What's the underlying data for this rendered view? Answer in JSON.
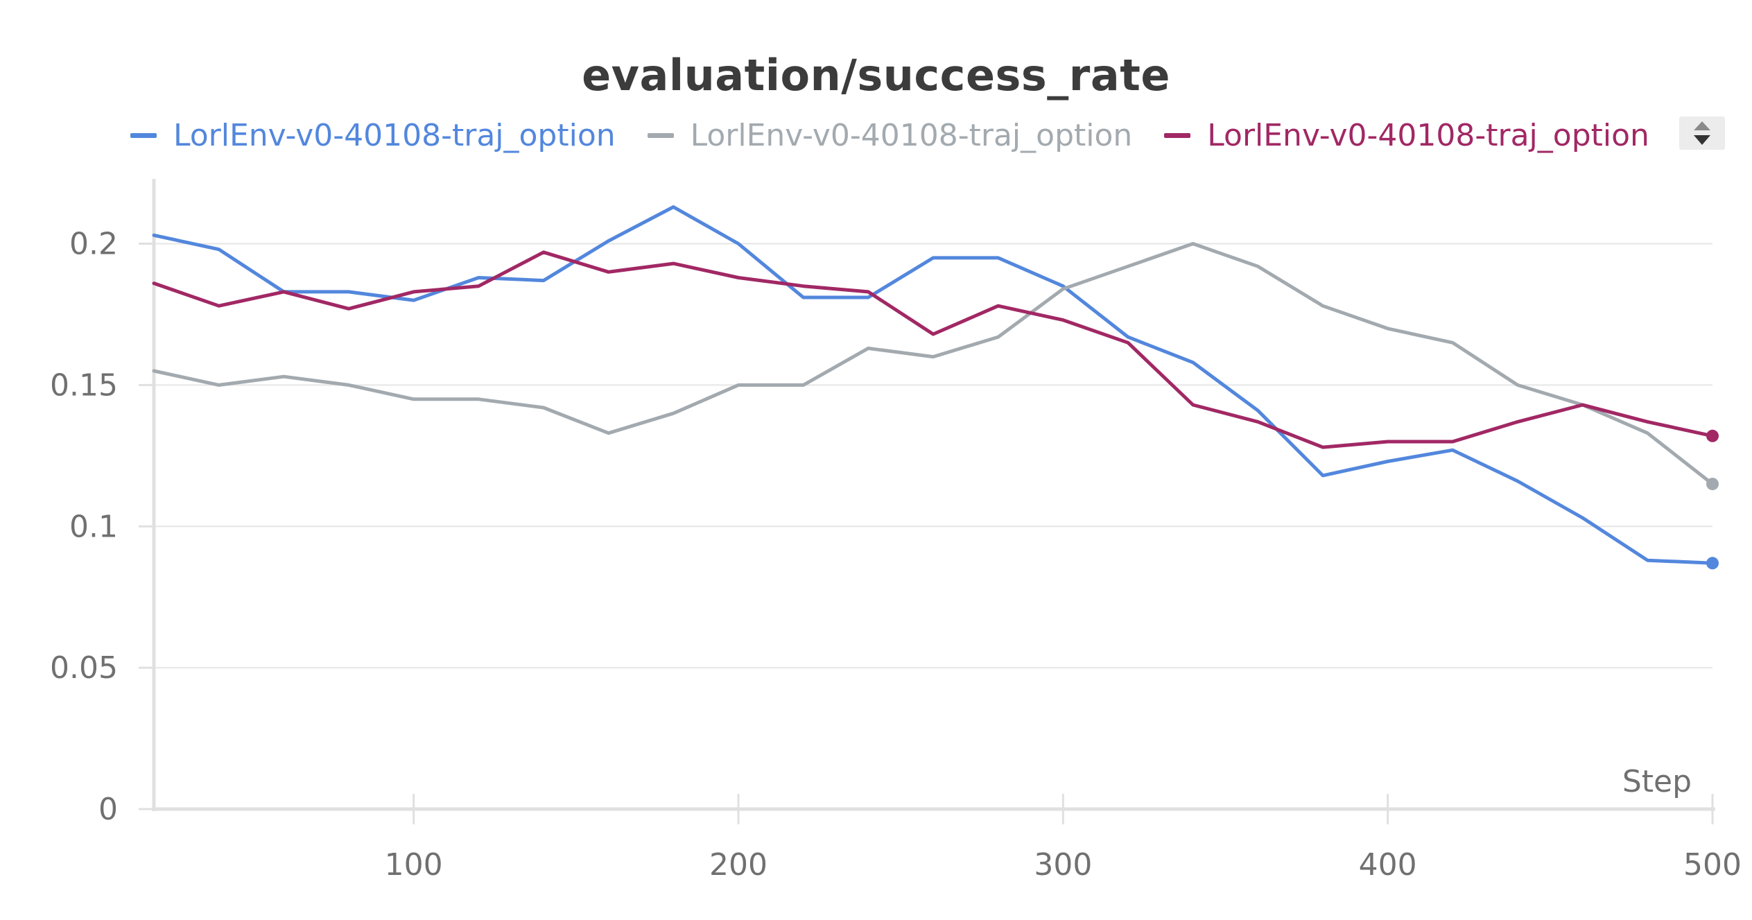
{
  "chart_data": {
    "type": "line",
    "title": "evaluation/success_rate",
    "xlabel": "Step",
    "ylabel": "",
    "xlim": [
      20,
      500
    ],
    "ylim": [
      0,
      0.22
    ],
    "grid": true,
    "legend_position": "top",
    "x_ticks": [
      100,
      200,
      300,
      400,
      500
    ],
    "x_tick_labels": [
      "100",
      "200",
      "300",
      "400",
      "500"
    ],
    "y_ticks": [
      0,
      0.05,
      0.1,
      0.15,
      0.2
    ],
    "y_tick_labels": [
      "0",
      "0.05",
      "0.1",
      "0.15",
      "0.2"
    ],
    "x": [
      20,
      40,
      60,
      80,
      100,
      120,
      140,
      160,
      180,
      200,
      220,
      240,
      260,
      280,
      300,
      320,
      340,
      360,
      380,
      400,
      420,
      440,
      460,
      480,
      500
    ],
    "series": [
      {
        "name": "LorlEnv-v0-40108-traj_option",
        "color": "#5387dd",
        "values": [
          0.203,
          0.198,
          0.183,
          0.183,
          0.18,
          0.188,
          0.187,
          0.201,
          0.213,
          0.2,
          0.181,
          0.181,
          0.195,
          0.195,
          0.185,
          0.167,
          0.158,
          0.141,
          0.118,
          0.123,
          0.127,
          0.116,
          0.103,
          0.088,
          0.087
        ]
      },
      {
        "name": "LorlEnv-v0-40108-traj_option",
        "color": "#a3aaaf",
        "values": [
          0.155,
          0.15,
          0.153,
          0.15,
          0.145,
          0.145,
          0.142,
          0.133,
          0.14,
          0.15,
          0.15,
          0.163,
          0.16,
          0.167,
          0.184,
          0.192,
          0.2,
          0.192,
          0.178,
          0.17,
          0.165,
          0.15,
          0.143,
          0.133,
          0.115
        ]
      },
      {
        "name": "LorlEnv-v0-40108-traj_option",
        "color": "#a12864",
        "values": [
          0.186,
          0.178,
          0.183,
          0.177,
          0.183,
          0.185,
          0.197,
          0.19,
          0.193,
          0.188,
          0.185,
          0.183,
          0.168,
          0.178,
          0.173,
          0.165,
          0.143,
          0.137,
          0.128,
          0.13,
          0.13,
          0.137,
          0.143,
          0.137,
          0.132
        ]
      }
    ]
  }
}
